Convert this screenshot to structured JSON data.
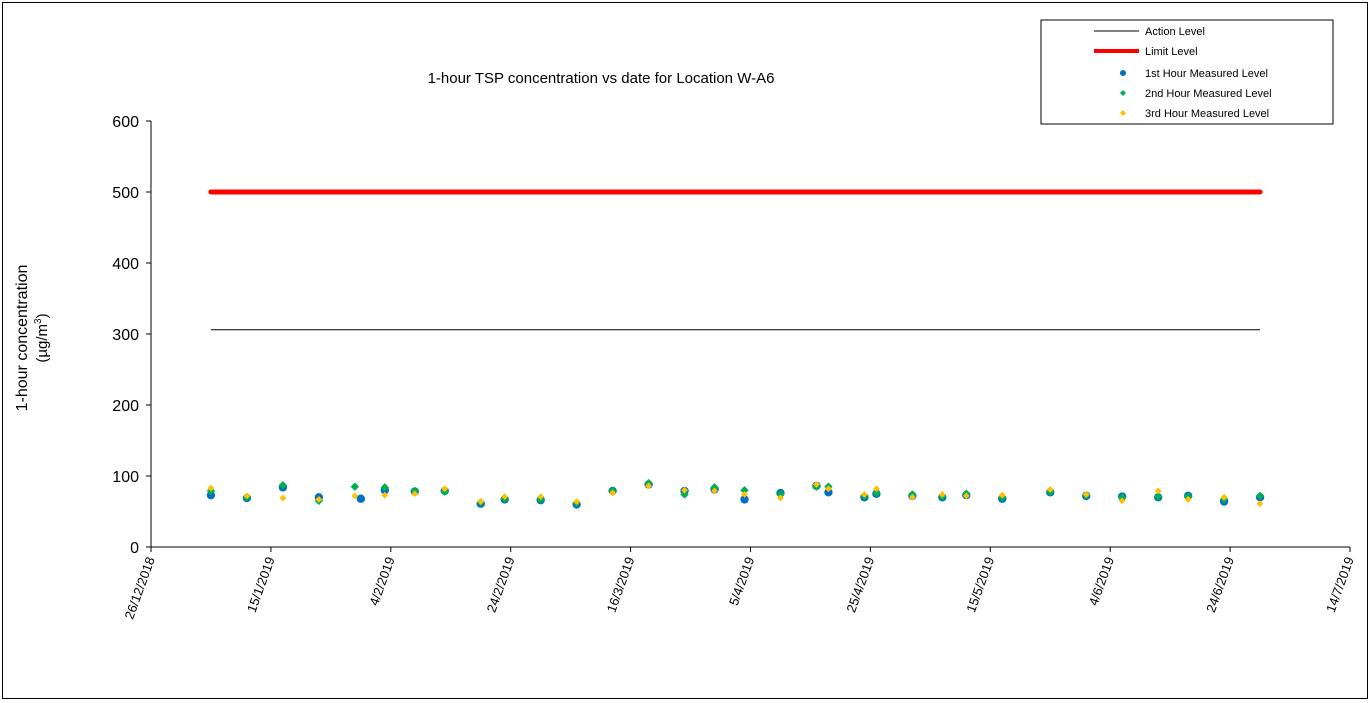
{
  "chart_data": {
    "type": "scatter",
    "title": "1-hour TSP concentration vs date for Location  W-A6",
    "ylabel_line1": "1-hour concentration",
    "ylabel_line2_prefix": "(µg/m",
    "ylabel_line2_sup": "3",
    "ylabel_line2_suffix": ")",
    "ylim": [
      0,
      600
    ],
    "yticks": [
      0,
      100,
      200,
      300,
      400,
      500,
      600
    ],
    "xlim": [
      "2018-12-26",
      "2019-07-14"
    ],
    "xticks": [
      "2018-12-26",
      "2019-01-15",
      "2019-02-04",
      "2019-02-24",
      "2019-03-16",
      "2019-04-05",
      "2019-04-25",
      "2019-05-15",
      "2019-06-04",
      "2019-06-24",
      "2019-07-14"
    ],
    "xtick_labels": [
      "26/12/2018",
      "15/1/2019",
      "4/2/2019",
      "24/2/2019",
      "16/3/2019",
      "5/4/2019",
      "25/4/2019",
      "15/5/2019",
      "4/6/2019",
      "24/6/2019",
      "14/7/2019"
    ],
    "legend_position": "top-right",
    "grid": false,
    "action_level": {
      "name": "Action Level",
      "value": 306,
      "x": [
        "2019-01-05",
        "2019-06-29"
      ],
      "color": "#000000"
    },
    "limit_level": {
      "name": "Limit Level",
      "value": 500,
      "x": [
        "2019-01-05",
        "2019-06-29"
      ],
      "color": "#ff0000"
    },
    "series": [
      {
        "name": "1st Hour Measured Level",
        "marker": "circle",
        "color": "#0070c0",
        "x": [
          "2019-01-05",
          "2019-01-11",
          "2019-01-17",
          "2019-01-23",
          "2019-01-30",
          "2019-02-03",
          "2019-02-08",
          "2019-02-13",
          "2019-02-19",
          "2019-02-23",
          "2019-03-01",
          "2019-03-07",
          "2019-03-13",
          "2019-03-19",
          "2019-03-25",
          "2019-03-30",
          "2019-04-04",
          "2019-04-10",
          "2019-04-16",
          "2019-04-18",
          "2019-04-24",
          "2019-04-26",
          "2019-05-02",
          "2019-05-07",
          "2019-05-11",
          "2019-05-17",
          "2019-05-25",
          "2019-05-31",
          "2019-06-06",
          "2019-06-12",
          "2019-06-17",
          "2019-06-23",
          "2019-06-29"
        ],
        "y": [
          73,
          69,
          84,
          70,
          68,
          80,
          78,
          79,
          61,
          67,
          66,
          60,
          79,
          88,
          79,
          81,
          67,
          76,
          86,
          77,
          70,
          75,
          72,
          70,
          73,
          68,
          77,
          72,
          71,
          70,
          72,
          64,
          70
        ]
      },
      {
        "name": "2nd Hour Measured Level",
        "marker": "diamond",
        "color": "#00b050",
        "x": [
          "2019-01-05",
          "2019-01-11",
          "2019-01-17",
          "2019-01-23",
          "2019-01-29",
          "2019-02-03",
          "2019-02-08",
          "2019-02-13",
          "2019-02-19",
          "2019-02-23",
          "2019-03-01",
          "2019-03-07",
          "2019-03-13",
          "2019-03-19",
          "2019-03-25",
          "2019-03-30",
          "2019-04-04",
          "2019-04-10",
          "2019-04-16",
          "2019-04-18",
          "2019-04-24",
          "2019-04-26",
          "2019-05-02",
          "2019-05-07",
          "2019-05-11",
          "2019-05-17",
          "2019-05-25",
          "2019-05-31",
          "2019-06-06",
          "2019-06-12",
          "2019-06-17",
          "2019-06-23",
          "2019-06-29"
        ],
        "y": [
          79,
          70,
          87,
          65,
          85,
          84,
          79,
          78,
          63,
          68,
          67,
          62,
          79,
          90,
          74,
          84,
          80,
          74,
          85,
          85,
          72,
          76,
          74,
          71,
          75,
          70,
          78,
          73,
          70,
          71,
          71,
          67,
          72
        ]
      },
      {
        "name": "3rd Hour Measured Level",
        "marker": "diamond",
        "color": "#ffc000",
        "x": [
          "2019-01-05",
          "2019-01-11",
          "2019-01-17",
          "2019-01-23",
          "2019-01-29",
          "2019-02-03",
          "2019-02-08",
          "2019-02-13",
          "2019-02-19",
          "2019-02-23",
          "2019-03-01",
          "2019-03-07",
          "2019-03-13",
          "2019-03-19",
          "2019-03-25",
          "2019-03-30",
          "2019-04-04",
          "2019-04-10",
          "2019-04-16",
          "2019-04-18",
          "2019-04-24",
          "2019-04-26",
          "2019-05-02",
          "2019-05-07",
          "2019-05-11",
          "2019-05-17",
          "2019-05-25",
          "2019-05-31",
          "2019-06-06",
          "2019-06-12",
          "2019-06-17",
          "2019-06-23",
          "2019-06-29"
        ],
        "y": [
          83,
          72,
          69,
          67,
          72,
          73,
          75,
          82,
          64,
          71,
          71,
          64,
          76,
          86,
          80,
          79,
          74,
          69,
          88,
          82,
          74,
          82,
          70,
          74,
          72,
          73,
          81,
          74,
          65,
          79,
          67,
          70,
          61
        ]
      }
    ]
  }
}
